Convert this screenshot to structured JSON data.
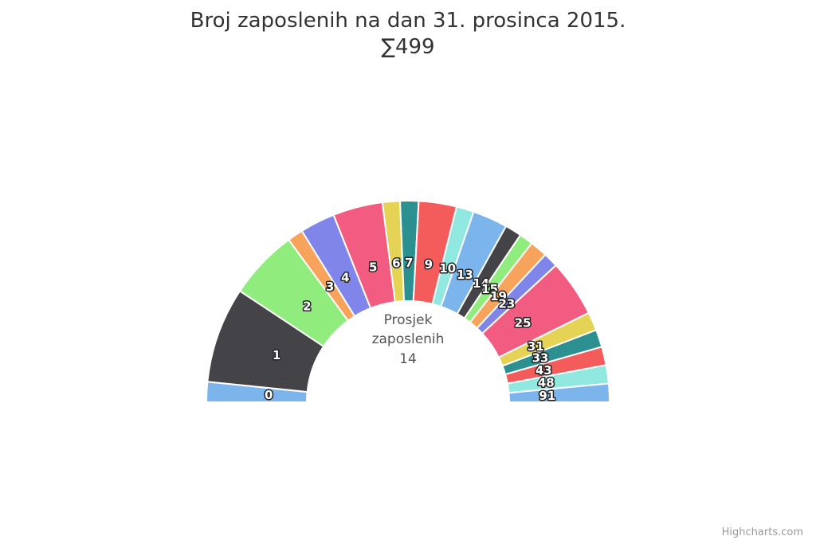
{
  "chart_data": {
    "type": "pie",
    "variant": "semi-donut",
    "title": "Broj zaposlenih na dan 31. prosinca 2015.",
    "subtitle": "∑499",
    "center_label": [
      "Prosjek",
      "zaposlenih",
      "14"
    ],
    "categories": [
      "0",
      "1",
      "2",
      "3",
      "4",
      "5",
      "6",
      "7",
      "9",
      "10",
      "13",
      "14",
      "15",
      "19",
      "23",
      "25",
      "31",
      "33",
      "43",
      "48",
      "91"
    ],
    "values": [
      2.2,
      10.4,
      7.6,
      1.7,
      3.8,
      5.4,
      1.9,
      2.0,
      4.1,
      1.9,
      3.8,
      1.8,
      1.5,
      1.9,
      1.6,
      6.2,
      2.0,
      1.9,
      2.0,
      2.0,
      2.0
    ],
    "colors": [
      "#7cb5ec",
      "#434348",
      "#90ed7d",
      "#f7a35c",
      "#8085e9",
      "#f15c80",
      "#e4d354",
      "#2b908f",
      "#f45b5b",
      "#91e8e1",
      "#7cb5ec",
      "#434348",
      "#90ed7d",
      "#f7a35c",
      "#8085e9",
      "#f15c80",
      "#e4d354",
      "#2b908f",
      "#f45b5b",
      "#91e8e1",
      "#7cb5ec"
    ],
    "legend": "none"
  },
  "credits": "Highcharts.com"
}
